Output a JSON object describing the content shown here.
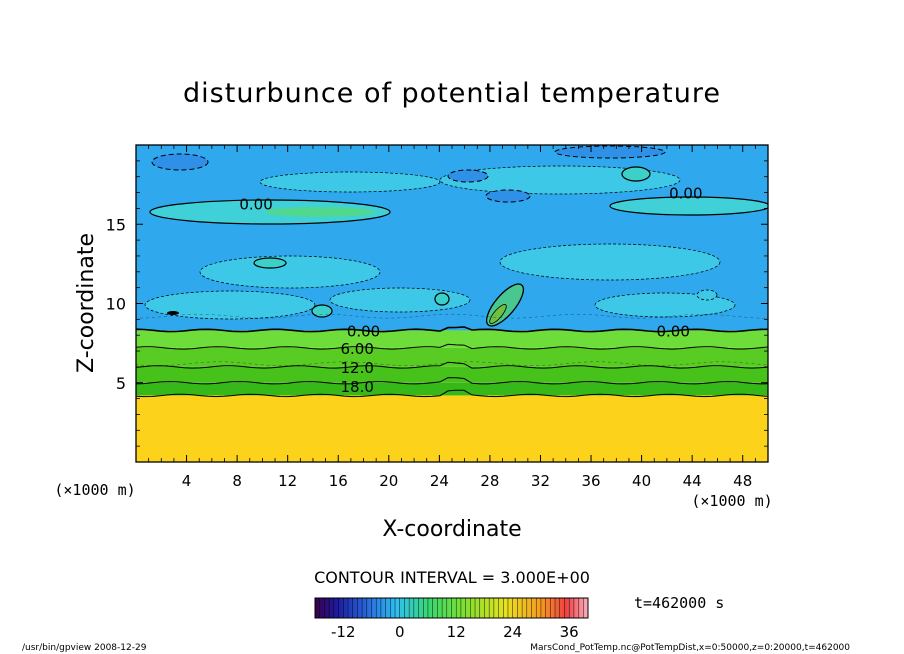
{
  "chart_data": {
    "type": "heatmap",
    "title": "disturbunce of potential temperature",
    "xlabel": "X-coordinate",
    "ylabel": "Z-coordinate",
    "x_unit": "(×1000 m)",
    "y_unit": "(×1000 m)",
    "xlim": [
      0,
      50
    ],
    "ylim": [
      0,
      20
    ],
    "x_ticks": [
      4,
      8,
      12,
      16,
      20,
      24,
      28,
      32,
      36,
      40,
      44,
      48
    ],
    "y_ticks": [
      5,
      10,
      15
    ],
    "contour_interval": "CONTOUR INTERVAL = 3.000E+00",
    "time_label": "t=462000 s",
    "contour_labels": [
      {
        "text": "0.00",
        "x": 9.5,
        "z": 16.3
      },
      {
        "text": "0.00",
        "x": 43.5,
        "z": 17.0
      },
      {
        "text": "0.00",
        "x": 18.0,
        "z": 8.3
      },
      {
        "text": "0.00",
        "x": 42.5,
        "z": 8.3
      },
      {
        "text": "6.00",
        "x": 17.5,
        "z": 7.2
      },
      {
        "text": "12.0",
        "x": 17.5,
        "z": 6.0
      },
      {
        "text": "18.0",
        "x": 17.5,
        "z": 4.8
      }
    ],
    "colorbar": {
      "min": -18,
      "max": 40,
      "ticks": [
        -12,
        0,
        12,
        24,
        36
      ]
    },
    "bands": [
      {
        "z0": 0,
        "z1": 4.2,
        "value": 27,
        "color": "#fcd21a"
      },
      {
        "z0": 4.2,
        "z1": 5.0,
        "value": 20,
        "color": "#36b818"
      },
      {
        "z0": 5.0,
        "z1": 6.0,
        "value": 16,
        "color": "#46c21a"
      },
      {
        "z0": 6.0,
        "z1": 7.2,
        "value": 11,
        "color": "#58cc22"
      },
      {
        "z0": 7.2,
        "z1": 8.3,
        "value": 5,
        "color": "#6edd3a"
      },
      {
        "z0": 8.3,
        "z1": 20,
        "value": -1,
        "color": "#2fa8ee"
      }
    ]
  },
  "footer": {
    "left": "/usr/bin/gpview   2008-12-29",
    "right": "MarsCond_PotTemp.nc@PotTempDist,x=0:50000,z=0:20000,t=462000"
  }
}
